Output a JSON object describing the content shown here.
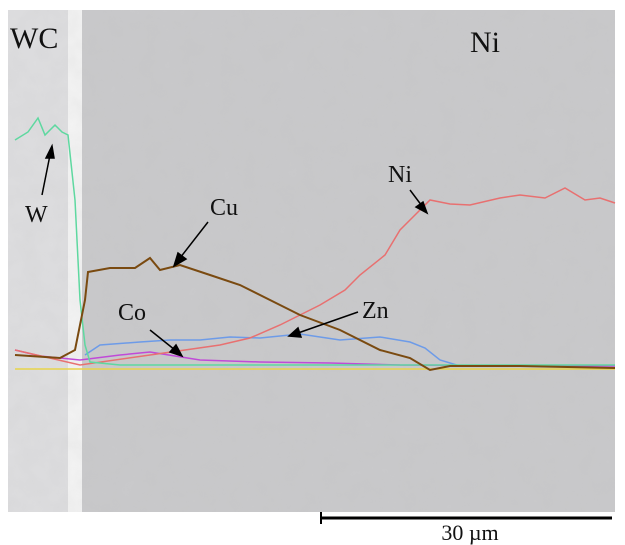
{
  "image": {
    "regions": {
      "left": "WC",
      "right": "Ni"
    },
    "profile_labels": [
      "W",
      "Cu",
      "Co",
      "Zn",
      "Ni"
    ],
    "scale_bar": "30 µm"
  }
}
